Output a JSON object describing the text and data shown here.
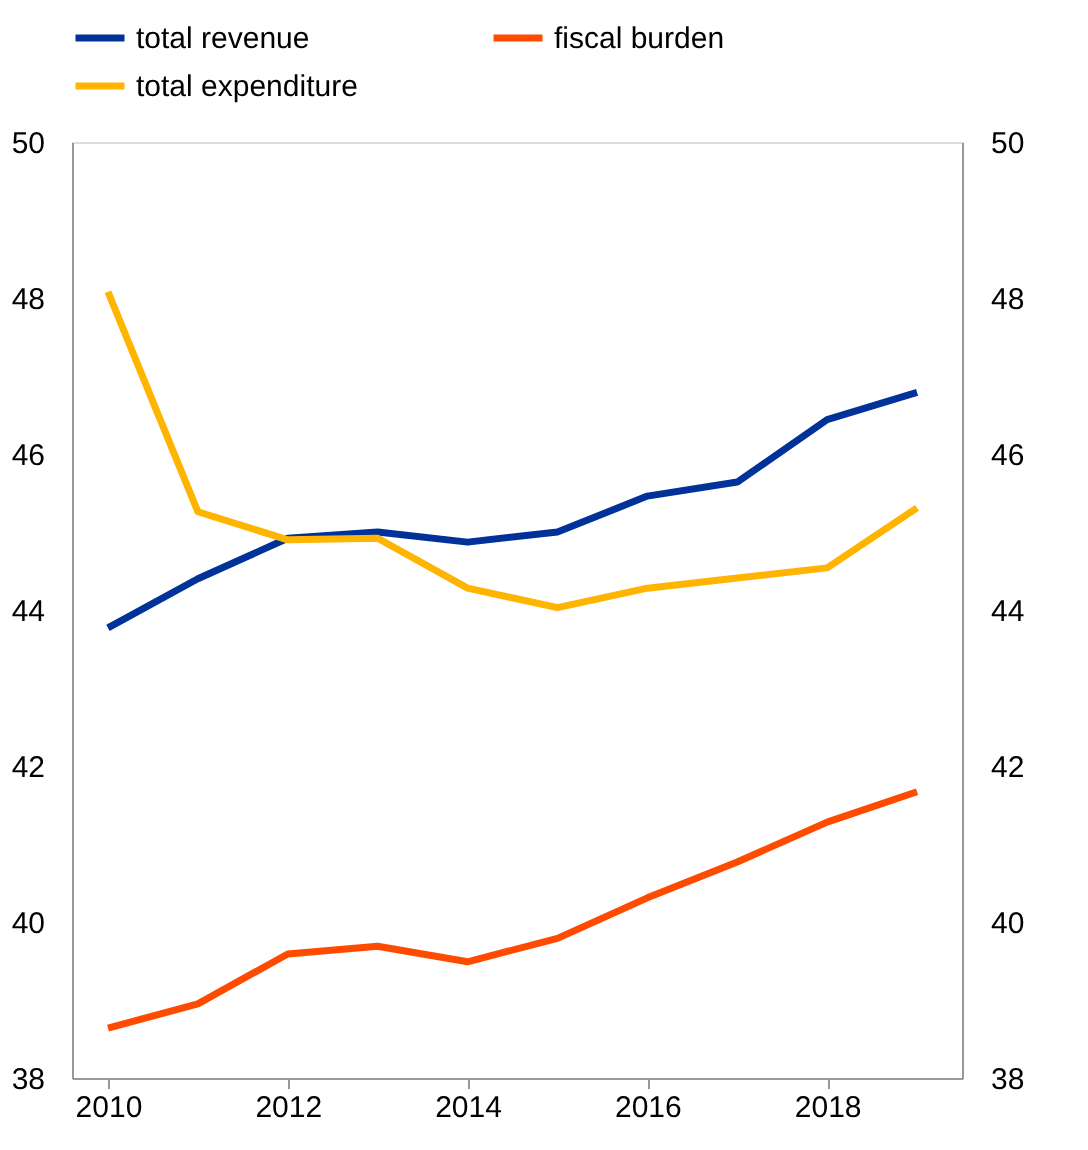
{
  "chart_data": {
    "type": "line",
    "x": [
      2010,
      2011,
      2012,
      2013,
      2014,
      2015,
      2016,
      2017,
      2018,
      2019
    ],
    "series": [
      {
        "name": "total revenue",
        "color": "#003299",
        "values": [
          43.77,
          44.4,
          44.92,
          45.0,
          44.87,
          45.0,
          45.46,
          45.64,
          46.44,
          46.79
        ]
      },
      {
        "name": "total expenditure",
        "color": "#ffb400",
        "values": [
          48.08,
          45.26,
          44.9,
          44.92,
          44.28,
          44.03,
          44.28,
          44.41,
          44.54,
          45.31
        ]
      },
      {
        "name": "fiscal burden",
        "color": "#ff4b00",
        "values": [
          38.64,
          38.95,
          39.59,
          39.69,
          39.49,
          39.79,
          40.31,
          40.77,
          41.28,
          41.67
        ]
      }
    ],
    "xlim": [
      2009.6,
      2019.5
    ],
    "xticks": [
      2010,
      2012,
      2014,
      2016,
      2018
    ],
    "ylim": [
      38,
      50
    ],
    "yticks": [
      38,
      40,
      42,
      44,
      46,
      48,
      50
    ],
    "y2lim": [
      38,
      50
    ],
    "y2ticks": [
      38,
      40,
      42,
      44,
      46,
      48,
      50
    ],
    "grid": false,
    "legend": "top",
    "marker": "none",
    "line_style": "solid"
  }
}
